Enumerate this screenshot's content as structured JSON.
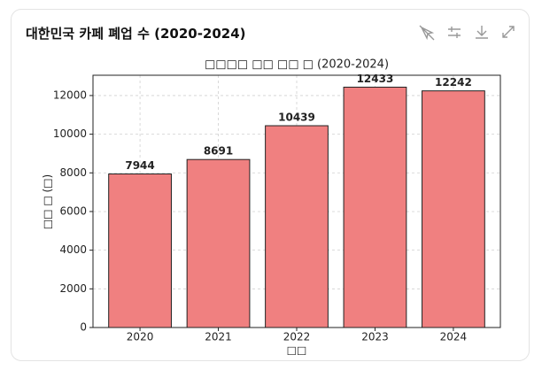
{
  "header": {
    "title": "대한민국 카페 폐업 수 (2020-2024)"
  },
  "chart_data": {
    "type": "bar",
    "title": "□□□□ □□ □□ □ (2020-2024)",
    "x_label": "□□",
    "y_label": "□□ □ (□)",
    "categories": [
      "2020",
      "2021",
      "2022",
      "2023",
      "2024"
    ],
    "values": [
      7944,
      8691,
      10439,
      12433,
      12242
    ],
    "color": "#f08080",
    "edge_color": "#222222",
    "ylim": [
      0,
      13050
    ],
    "yticks": [
      0,
      2000,
      4000,
      6000,
      8000,
      10000,
      12000
    ],
    "grid": true
  }
}
